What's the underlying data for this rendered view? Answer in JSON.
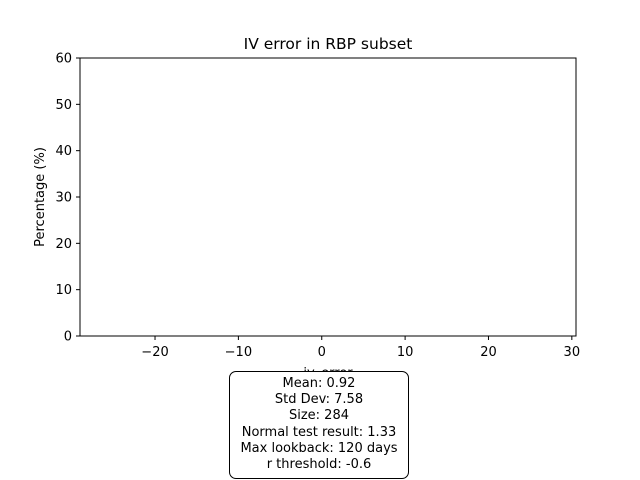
{
  "chart_data": {
    "type": "bar",
    "title": "IV error in RBP subset",
    "xlabel": "iv_error",
    "ylabel": "Percentage (%)",
    "xlim": [
      -29,
      30.5
    ],
    "ylim": [
      0,
      60
    ],
    "x_ticks": [
      -20,
      -10,
      0,
      10,
      20,
      30
    ],
    "x_tick_labels": [
      "−20",
      "−10",
      "0",
      "10",
      "20",
      "30"
    ],
    "y_ticks": [
      0,
      10,
      20,
      30,
      40,
      50,
      60
    ],
    "y_tick_labels": [
      "0",
      "10",
      "20",
      "30",
      "40",
      "50",
      "60"
    ],
    "grid": false,
    "values": []
  },
  "stats": {
    "lines": [
      "Mean: 0.92",
      "Std Dev: 7.58",
      "Size: 284",
      "Normal test result: 1.33",
      "Max lookback: 120 days",
      "r threshold: -0.6"
    ]
  }
}
